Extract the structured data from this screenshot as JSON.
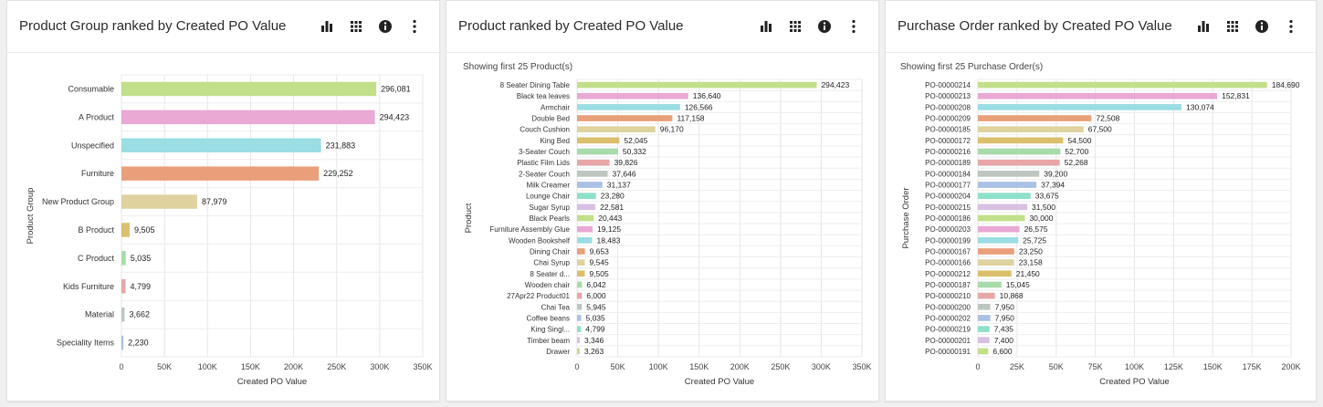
{
  "colors": [
    "#c2df8a",
    "#eaa8d4",
    "#9adde3",
    "#e9a07a",
    "#dfd29f",
    "#dcbf6d",
    "#a8dbaa",
    "#e8a6a6",
    "#bdc7bf",
    "#a9c1e4",
    "#8ee0c9",
    "#d8c0e2"
  ],
  "icons": [
    "bar-chart-icon",
    "grid-icon",
    "info-icon",
    "more-vertical-icon"
  ],
  "panels": [
    {
      "title": "Product Group ranked by Created PO Value",
      "chart_data": {
        "type": "bar",
        "orientation": "horizontal",
        "subtitle": "",
        "xlabel": "Created PO Value",
        "ylabel": "Product Group",
        "xlim": [
          0,
          350000
        ],
        "xticks": [
          "0",
          "50K",
          "100K",
          "150K",
          "200K",
          "250K",
          "300K",
          "350K"
        ],
        "grid": true,
        "categories": [
          "Consumable",
          "A Product",
          "Unspecified",
          "Furniture",
          "New Product Group",
          "B Product",
          "C Product",
          "Kids Furniture",
          "Material",
          "Speciality Items"
        ],
        "values": [
          296081,
          294423,
          231883,
          229252,
          87979,
          9505,
          5035,
          4799,
          3662,
          2230
        ],
        "labels": [
          "296,081",
          "294,423",
          "231,883",
          "229,252",
          "87,979",
          "9,505",
          "5,035",
          "4,799",
          "3,662",
          "2,230"
        ]
      }
    },
    {
      "title": "Product ranked by Created PO Value",
      "chart_data": {
        "type": "bar",
        "orientation": "horizontal",
        "subtitle": "Showing first 25 Product(s)",
        "xlabel": "Created PO Value",
        "ylabel": "Product",
        "xlim": [
          0,
          350000
        ],
        "xticks": [
          "0",
          "50K",
          "100K",
          "150K",
          "200K",
          "250K",
          "300K",
          "350K"
        ],
        "grid": true,
        "categories": [
          "8 Seater Dining Table",
          "Black tea leaves",
          "Armchair",
          "Double Bed",
          "Couch Cushion",
          "King Bed",
          "3-Seater Couch",
          "Plastic Film Lids",
          "2-Seater Couch",
          "Milk Creamer",
          "Lounge Chair",
          "Sugar Syrup",
          "Black Pearls",
          "Furniture Assembly Glue",
          "Wooden Bookshelf",
          "Dining Chair",
          "Chai Syrup",
          "8 Seater d...",
          "Wooden chair",
          "27Apr22 Product01",
          "Chai Tea",
          "Coffee beans",
          "King Singl...",
          "Timber beam",
          "Drawer"
        ],
        "values": [
          294423,
          136640,
          126566,
          117158,
          96170,
          52045,
          50332,
          39826,
          37646,
          31137,
          23280,
          22581,
          20443,
          19125,
          18483,
          9653,
          9545,
          9505,
          6042,
          6000,
          5945,
          5035,
          4799,
          3346,
          3263
        ],
        "labels": [
          "294,423",
          "136,640",
          "126,566",
          "117,158",
          "96,170",
          "52,045",
          "50,332",
          "39,826",
          "37,646",
          "31,137",
          "23,280",
          "22,581",
          "20,443",
          "19,125",
          "18,483",
          "9,653",
          "9,545",
          "9,505",
          "6,042",
          "6,000",
          "5,945",
          "5,035",
          "4,799",
          "3,346",
          "3,263"
        ]
      }
    },
    {
      "title": "Purchase Order ranked by Created PO Value",
      "chart_data": {
        "type": "bar",
        "orientation": "horizontal",
        "subtitle": "Showing first 25 Purchase Order(s)",
        "xlabel": "Created PO Value",
        "ylabel": "Purchase Order",
        "xlim": [
          0,
          200000
        ],
        "xticks": [
          "0",
          "25K",
          "50K",
          "75K",
          "100K",
          "125K",
          "150K",
          "175K",
          "200K"
        ],
        "grid": true,
        "categories": [
          "PO-00000214",
          "PO-00000213",
          "PO-00000208",
          "PO-00000209",
          "PO-00000185",
          "PO-00000172",
          "PO-00000216",
          "PO-00000189",
          "PO-00000184",
          "PO-00000177",
          "PO-00000204",
          "PO-00000215",
          "PO-00000186",
          "PO-00000203",
          "PO-00000199",
          "PO-00000167",
          "PO-00000166",
          "PO-00000212",
          "PO-00000187",
          "PO-00000210",
          "PO-00000200",
          "PO-00000202",
          "PO-00000219",
          "PO-00000201",
          "PO-00000191"
        ],
        "values": [
          184690,
          152831,
          130074,
          72508,
          67500,
          54500,
          52700,
          52268,
          39200,
          37394,
          33675,
          31500,
          30000,
          26575,
          25725,
          23250,
          23158,
          21450,
          15045,
          10868,
          7950,
          7950,
          7435,
          7400,
          6600
        ],
        "labels": [
          "184,690",
          "152,831",
          "130,074",
          "72,508",
          "67,500",
          "54,500",
          "52,700",
          "52,268",
          "39,200",
          "37,394",
          "33,675",
          "31,500",
          "30,000",
          "26,575",
          "25,725",
          "23,250",
          "23,158",
          "21,450",
          "15,045",
          "10,868",
          "7,950",
          "7,950",
          "7,435",
          "7,400",
          "6,600"
        ]
      }
    }
  ]
}
